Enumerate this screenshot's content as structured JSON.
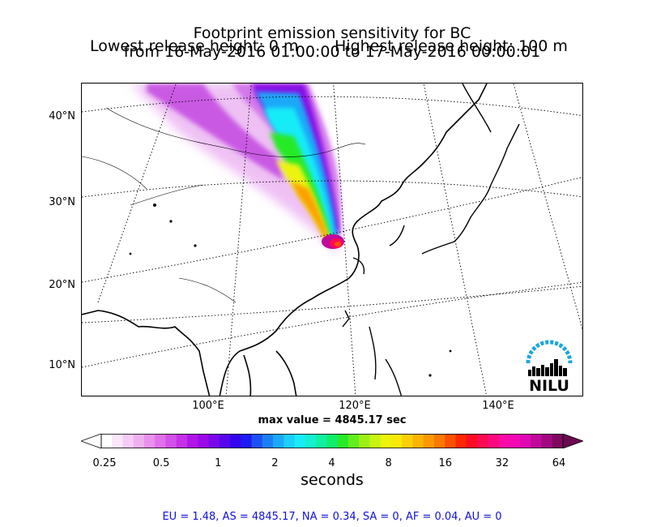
{
  "title": {
    "line1": "Footprint emission sensitivity for BC",
    "line2": "from 16-May-2016 01:00:00 to 17-May-2016 00:00:01",
    "lowest_release": "Lowest release height: 0 m",
    "highest_release": "Highest release height: 100 m"
  },
  "map": {
    "lat_labels": [
      "40°N",
      "30°N",
      "20°N",
      "10°N"
    ],
    "lon_labels": [
      "100°E",
      "120°E",
      "140°E"
    ],
    "max_value": "max value = 4845.17 sec",
    "logo_text": "NILU",
    "colors": {
      "frame": "#000000",
      "graticule": "#000000",
      "logo_arc": "#1aa7e0"
    }
  },
  "colorbar": {
    "ticks": [
      "0.25",
      "0.5",
      "1",
      "2",
      "4",
      "8",
      "16",
      "32",
      "64"
    ],
    "unit": "seconds",
    "colors": [
      "#ffffff",
      "#fbe6fb",
      "#f6ccf6",
      "#f0b0f0",
      "#ea90ee",
      "#e070ec",
      "#d450ea",
      "#c431e8",
      "#b016e6",
      "#9b0ae8",
      "#7a08ea",
      "#5806ec",
      "#3504ef",
      "#1c1cf2",
      "#1c50f4",
      "#1c7ff6",
      "#1ca8f8",
      "#1ccffa",
      "#18ecf8",
      "#14f0d0",
      "#10f0a0",
      "#10ee6c",
      "#28ea28",
      "#62ee20",
      "#9cf218",
      "#c8f414",
      "#ecf40c",
      "#f8e808",
      "#fad004",
      "#fbb402",
      "#fc9800",
      "#fc7800",
      "#fc5000",
      "#fd2800",
      "#fe0c24",
      "#fe0a50",
      "#fe087c",
      "#fe08a8",
      "#f408b4",
      "#e008b4",
      "#c0089c",
      "#a00880",
      "#800860"
    ]
  },
  "stats": "EU = 1.48,  AS = 4845.17,  NA = 0.34,  SA = 0,  AF = 0.04,  AU = 0"
}
